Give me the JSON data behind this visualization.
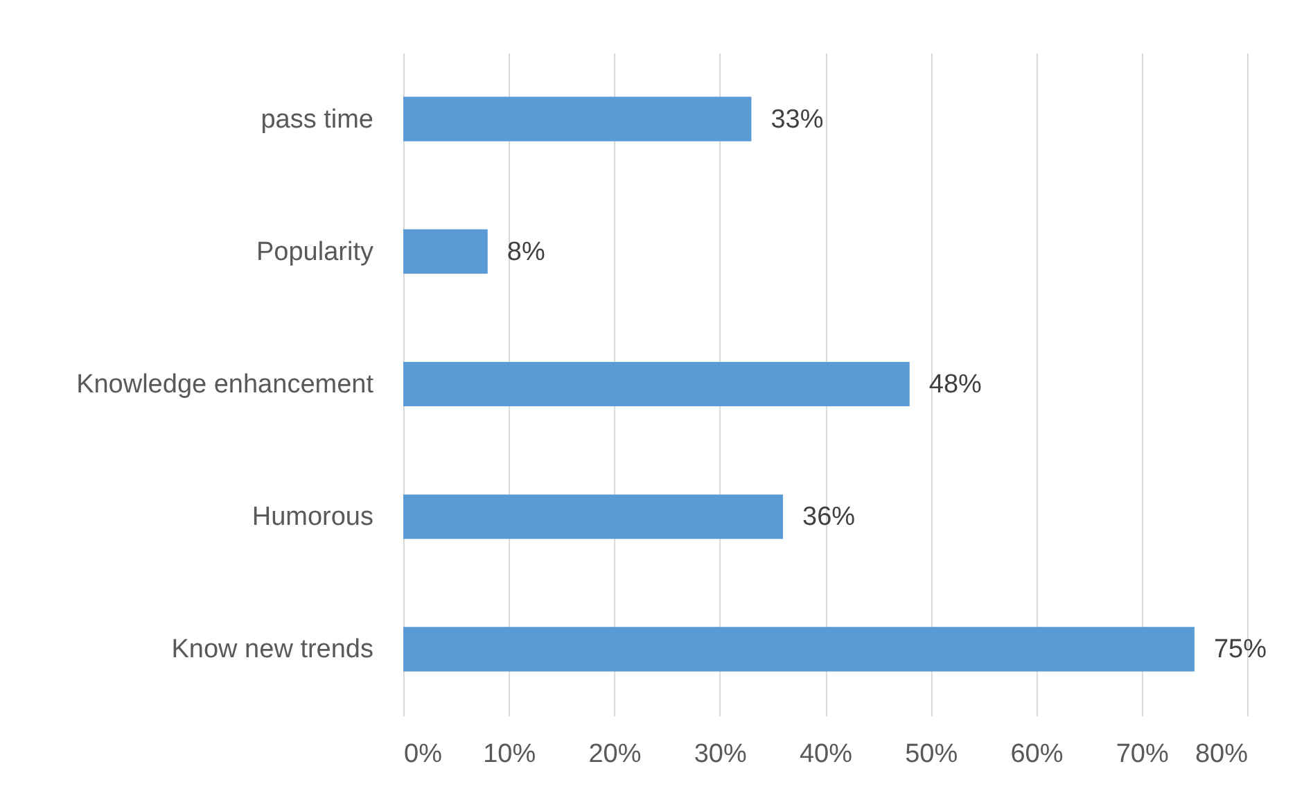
{
  "chart_data": {
    "type": "bar",
    "orientation": "horizontal",
    "categories": [
      "pass time",
      "Popularity",
      "Knowledge enhancement",
      "Humorous",
      "Know new trends"
    ],
    "values": [
      33,
      8,
      48,
      36,
      75
    ],
    "value_labels": [
      "33%",
      "8%",
      "48%",
      "36%",
      "75%"
    ],
    "color": "#5b9bd5",
    "xlim": [
      0,
      80
    ],
    "xticks": [
      {
        "value": 0,
        "label": "0%"
      },
      {
        "value": 10,
        "label": "10%"
      },
      {
        "value": 20,
        "label": "20%"
      },
      {
        "value": 30,
        "label": "30%"
      },
      {
        "value": 40,
        "label": "40%"
      },
      {
        "value": 50,
        "label": "50%"
      },
      {
        "value": 60,
        "label": "60%"
      },
      {
        "value": 70,
        "label": "70%"
      },
      {
        "value": 80,
        "label": "80%"
      }
    ],
    "grid": "x"
  }
}
